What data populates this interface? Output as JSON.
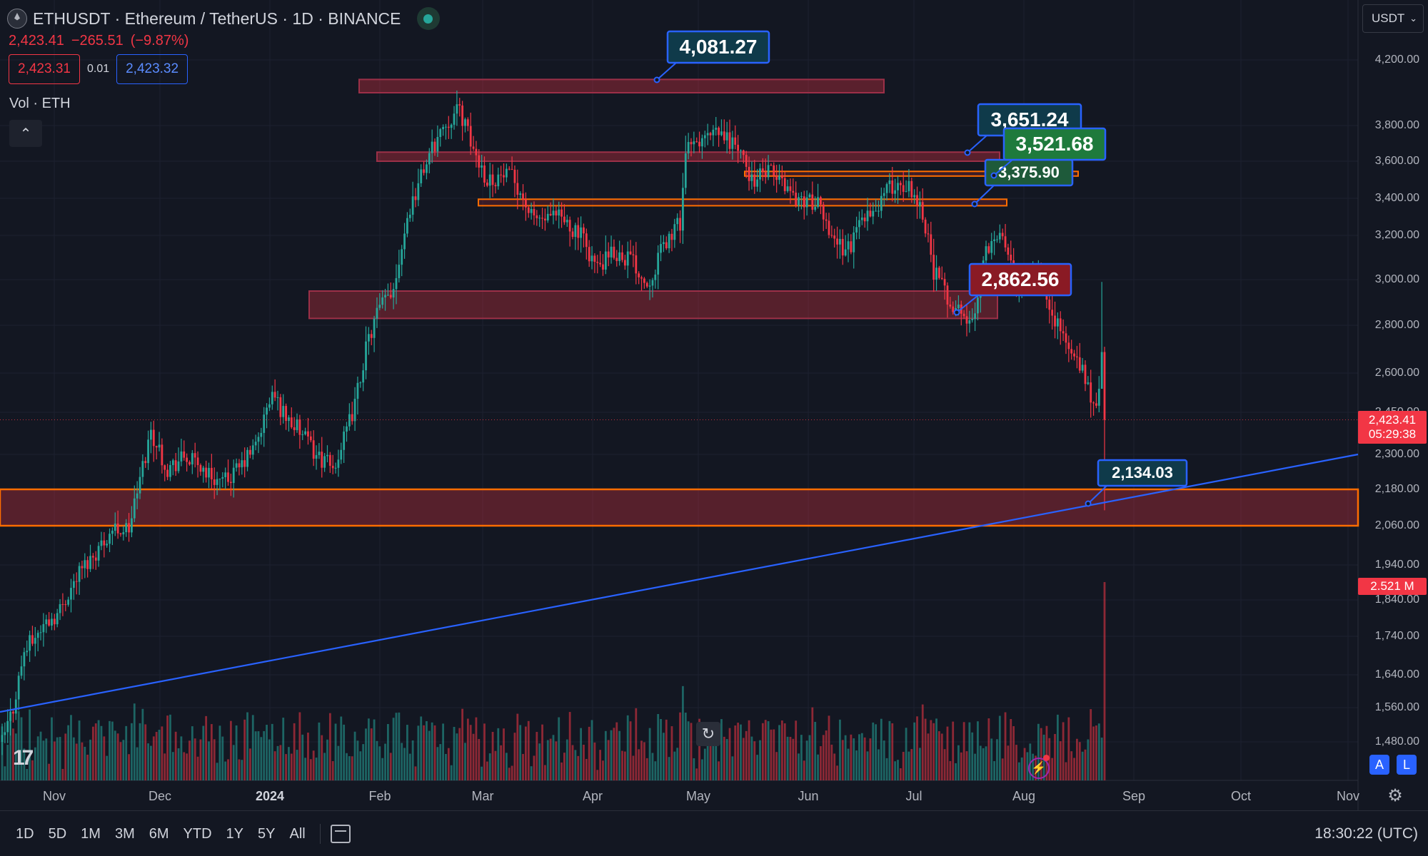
{
  "header": {
    "symbol": "ETHUSDT",
    "description": "Ethereum / TetherUS",
    "interval": "1D",
    "exchange": "BINANCE",
    "title_line": "ETHUSDT · Ethereum / TetherUS · 1D · BINANCE",
    "last_price": "2,423.41",
    "change": "−265.51",
    "change_pct": "(−9.87%)",
    "sell_price": "2,423.31",
    "spread": "0.01",
    "buy_price": "2,423.32",
    "volume_label": "Vol · ETH",
    "currency": "USDT"
  },
  "price_axis": {
    "ticks": [
      "4,200.00",
      "3,800.00",
      "3,600.00",
      "3,400.00",
      "3,200.00",
      "3,000.00",
      "2,800.00",
      "2,600.00",
      "2,450.00",
      "2,300.00",
      "2,180.00",
      "2,060.00",
      "1,940.00",
      "1,840.00",
      "1,740.00",
      "1,640.00",
      "1,560.00",
      "1,480.00"
    ],
    "last_price_label": "2,423.41",
    "countdown": "05:29:38",
    "volume_badge": "2.521 M"
  },
  "time_axis": {
    "labels": [
      "Nov",
      "Dec",
      "2024",
      "Feb",
      "Mar",
      "Apr",
      "May",
      "Jun",
      "Jul",
      "Aug",
      "Sep",
      "Oct",
      "Nov"
    ]
  },
  "callouts": {
    "c1": "4,081.27",
    "c2": "3,651.24",
    "c3": "3,521.68",
    "c4": "3,375.90",
    "c5": "2,862.56",
    "c6": "2,134.03"
  },
  "bottom_bar": {
    "ranges": [
      "1D",
      "5D",
      "1M",
      "3M",
      "6M",
      "YTD",
      "1Y",
      "5Y",
      "All"
    ],
    "clock": "18:30:22 (UTC)"
  },
  "axis_buttons": {
    "auto": "A",
    "log": "L"
  },
  "colors": {
    "background": "#131722",
    "up": "#26a69a",
    "down": "#f23645",
    "zone": "#f23645",
    "zone_border": "#ff6d00",
    "trendline": "#2962ff",
    "callout_blue": "#2962ff",
    "callout_green": "#1e7a3c",
    "callout_red": "#8a1a24",
    "callout_dark": "#0f3a4a"
  },
  "icons": {
    "symbol_logo": "ethereum-logo-icon",
    "live": "market-open-dot-icon",
    "collapse": "chevron-up-icon",
    "currency_dropdown": "chevron-down-icon",
    "settings": "gear-icon",
    "reset": "reset-chart-icon",
    "goto_date": "calendar-icon",
    "alerts": "flash-icon",
    "tv_logo": "tradingview-logo-icon"
  }
}
